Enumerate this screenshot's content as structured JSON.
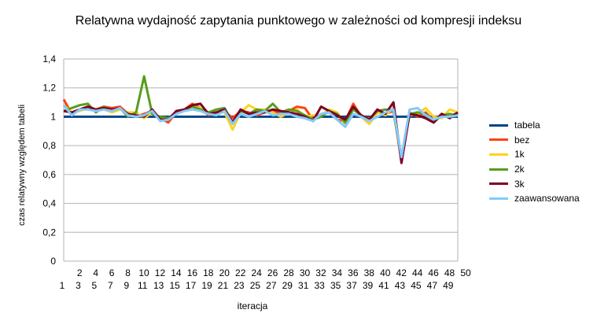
{
  "chart_data": {
    "type": "line",
    "title": "Relatywna wydajność zapytania punktowego w zależności od kompresji indeksu",
    "xlabel": "iteracja",
    "ylabel": "czas relatywny względem tabeli",
    "ylim": [
      0,
      1.4
    ],
    "y_ticks": [
      "0",
      "0,2",
      "0,4",
      "0,6",
      "0,8",
      "1",
      "1,2",
      "1,4"
    ],
    "x": [
      1,
      2,
      3,
      4,
      5,
      6,
      7,
      8,
      9,
      10,
      11,
      12,
      13,
      14,
      15,
      16,
      17,
      18,
      19,
      20,
      21,
      22,
      23,
      24,
      25,
      26,
      27,
      28,
      29,
      30,
      31,
      32,
      33,
      34,
      35,
      36,
      37,
      38,
      39,
      40,
      41,
      42,
      43,
      44,
      45,
      46,
      47,
      48,
      49,
      50
    ],
    "x_tick_labels": [
      "1",
      "2",
      "3",
      "4",
      "5",
      "6",
      "7",
      "8",
      "9",
      "10",
      "11",
      "12",
      "13",
      "14",
      "15",
      "16",
      "17",
      "18",
      "19",
      "20",
      "21",
      "22",
      "23",
      "24",
      "25",
      "26",
      "27",
      "28",
      "29",
      "30",
      "31",
      "32",
      "33",
      "34",
      "35",
      "36",
      "37",
      "38",
      "39",
      "40",
      "41",
      "42",
      "43",
      "44",
      "45",
      "46",
      "47",
      "48",
      "49",
      "50"
    ],
    "grid": "horizontal",
    "legend_position": "right",
    "series": [
      {
        "name": "tabela",
        "color": "#004586",
        "values": [
          1,
          1,
          1,
          1,
          1,
          1,
          1,
          1,
          1,
          1,
          1,
          1,
          1,
          1,
          1,
          1,
          1,
          1,
          1,
          1,
          1,
          1,
          1,
          1,
          1,
          1,
          1,
          1,
          1,
          1,
          1,
          1,
          1,
          1,
          1,
          1,
          1,
          1,
          1,
          1,
          1,
          1,
          1,
          1,
          1,
          1,
          1,
          1,
          1,
          1
        ]
      },
      {
        "name": "bez",
        "color": "#ff420e",
        "values": [
          1.12,
          1.02,
          1.05,
          1.06,
          1.05,
          1.07,
          1.06,
          1.07,
          1.02,
          1.0,
          1.02,
          1.04,
          0.99,
          0.96,
          1.03,
          1.05,
          1.09,
          1.06,
          1.01,
          1.03,
          1.04,
          0.99,
          1.04,
          1.03,
          1.01,
          1.03,
          1.04,
          1.02,
          1.04,
          1.07,
          1.06,
          0.98,
          1.02,
          1.03,
          0.98,
          0.97,
          1.09,
          1.0,
          0.99,
          1.03,
          1.02,
          1.04,
          0.7,
          1.03,
          1.0,
          1.03,
          0.97,
          1.02,
          1.0,
          1.03
        ]
      },
      {
        "name": "1k",
        "color": "#ffd320",
        "values": [
          1.08,
          1.03,
          1.04,
          1.06,
          1.04,
          1.05,
          1.03,
          1.05,
          1.03,
          1.03,
          0.99,
          1.03,
          0.98,
          0.99,
          1.02,
          1.05,
          1.07,
          1.06,
          1.02,
          1.04,
          1.03,
          0.91,
          1.03,
          1.08,
          1.05,
          1.05,
          1.03,
          1.0,
          1.03,
          1.05,
          1.0,
          1.01,
          1.01,
          1.05,
          1.03,
          0.95,
          1.07,
          1.0,
          0.95,
          1.03,
          1.01,
          1.06,
          0.72,
          1.01,
          1.02,
          1.06,
          1.0,
          0.99,
          1.05,
          1.03
        ]
      },
      {
        "name": "2k",
        "color": "#579d1c",
        "values": [
          1.04,
          1.06,
          1.08,
          1.09,
          1.03,
          1.07,
          1.04,
          1.06,
          1.0,
          1.03,
          1.28,
          1.02,
          1.0,
          0.99,
          1.03,
          1.05,
          1.07,
          1.05,
          1.03,
          1.05,
          1.06,
          0.96,
          1.04,
          1.02,
          1.05,
          1.04,
          1.09,
          1.03,
          1.05,
          1.04,
          1.01,
          0.98,
          1.0,
          1.04,
          1.02,
          0.96,
          1.05,
          1.01,
          0.98,
          1.04,
          1.05,
          1.04,
          0.71,
          1.02,
          1.03,
          1.02,
          0.96,
          1.01,
          1.02,
          1.01
        ]
      },
      {
        "name": "3k",
        "color": "#7e0021",
        "values": [
          1.04,
          1.03,
          1.05,
          1.07,
          1.05,
          1.06,
          1.05,
          1.06,
          1.02,
          1.01,
          1.0,
          1.05,
          0.98,
          0.98,
          1.04,
          1.05,
          1.08,
          1.09,
          1.02,
          1.03,
          1.05,
          0.96,
          1.05,
          1.02,
          1.03,
          1.03,
          1.05,
          1.04,
          1.03,
          1.02,
          1.0,
          0.97,
          1.07,
          1.04,
          1.01,
          0.98,
          1.07,
          1.01,
          0.98,
          1.05,
          1.02,
          1.1,
          0.68,
          1.02,
          1.01,
          0.99,
          0.96,
          1.02,
          0.99,
          1.03
        ]
      },
      {
        "name": "zaawansowana",
        "color": "#83caff",
        "values": [
          1.08,
          1.01,
          1.05,
          1.05,
          1.04,
          1.05,
          1.04,
          1.06,
          1.01,
          1.0,
          1.01,
          1.04,
          0.97,
          0.98,
          1.02,
          1.04,
          1.05,
          1.04,
          1.02,
          1.01,
          1.04,
          0.95,
          1.02,
          1.0,
          1.02,
          1.04,
          1.01,
          1.02,
          1.02,
          1.0,
          0.99,
          0.97,
          1.02,
          1.03,
          0.98,
          0.93,
          1.02,
          1.0,
          0.97,
          1.0,
          1.03,
          1.05,
          0.72,
          1.05,
          1.06,
          1.01,
          0.98,
          1.0,
          1.0,
          1.01
        ]
      }
    ]
  }
}
